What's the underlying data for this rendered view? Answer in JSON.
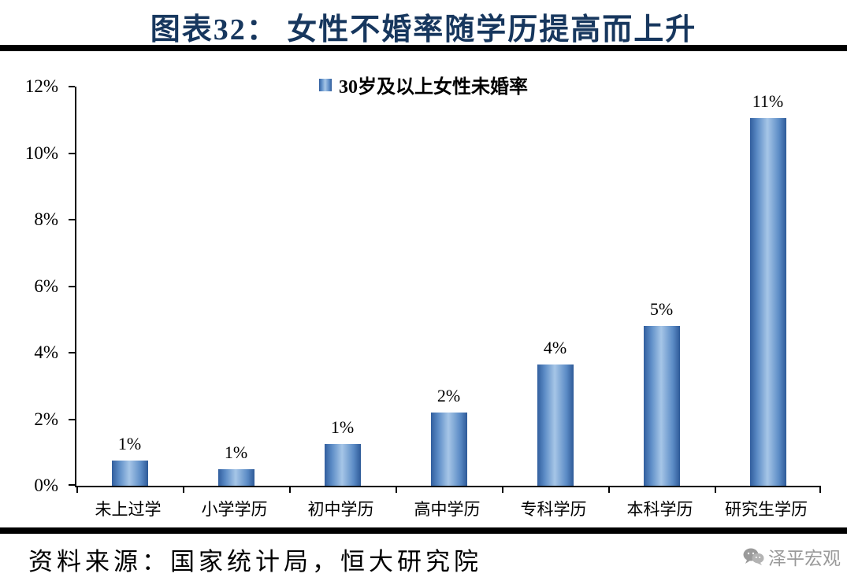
{
  "header": {
    "title": "图表32： 女性不婚率随学历提高而上升"
  },
  "chart_data": {
    "type": "bar",
    "title": "图表32： 女性不婚率随学历提高而上升",
    "legend": "30岁及以上女性未婚率",
    "legend_position": "top-center",
    "categories": [
      "未上过学",
      "小学学历",
      "初中学历",
      "高中学历",
      "专科学历",
      "本科学历",
      "研究生学历"
    ],
    "values": [
      0.75,
      0.5,
      1.25,
      2.2,
      3.65,
      4.8,
      11.05
    ],
    "data_labels": [
      "1%",
      "1%",
      "1%",
      "2%",
      "4%",
      "5%",
      "11%"
    ],
    "xlabel": "",
    "ylabel": "",
    "ylim": [
      0,
      12
    ],
    "ytick_values": [
      0,
      2,
      4,
      6,
      8,
      10,
      12
    ],
    "yticks": [
      "0%",
      "2%",
      "4%",
      "6%",
      "8%",
      "10%",
      "12%"
    ],
    "grid": false,
    "bar_color": "#4f81bd"
  },
  "footer": {
    "source": "资料来源：国家统计局，恒大研究院",
    "watermark": "泽平宏观"
  },
  "icons": {
    "wechat": "wechat-icon"
  },
  "colors": {
    "title": "#17375e",
    "bar_main": "#4f81bd",
    "bar_edge": "#2e5a98",
    "bar_highlight": "#a6c6e7",
    "divider": "#000000",
    "watermark": "#9a9a9a"
  }
}
